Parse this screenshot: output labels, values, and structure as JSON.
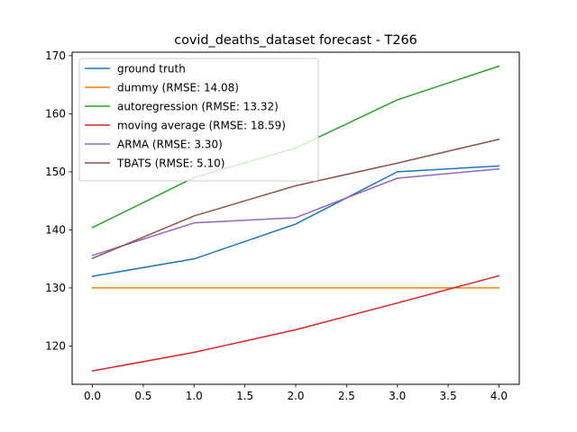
{
  "chart_data": {
    "type": "line",
    "title": "covid_deaths_dataset forecast - T266",
    "xlabel": "",
    "ylabel": "",
    "xlim": [
      -0.2,
      4.2
    ],
    "ylim": [
      113.4,
      170.6
    ],
    "xticks": [
      0.0,
      0.5,
      1.0,
      1.5,
      2.0,
      2.5,
      3.0,
      3.5,
      4.0
    ],
    "xtick_labels": [
      "0.0",
      "0.5",
      "1.0",
      "1.5",
      "2.0",
      "2.5",
      "3.0",
      "3.5",
      "4.0"
    ],
    "yticks": [
      120,
      130,
      140,
      150,
      160,
      170
    ],
    "ytick_labels": [
      "120",
      "130",
      "140",
      "150",
      "160",
      "170"
    ],
    "grid": false,
    "legend_position": "top-left",
    "x": [
      0,
      1,
      2,
      3,
      4
    ],
    "series": [
      {
        "name": "ground truth",
        "color": "#1f77b4",
        "values": [
          132.0,
          135.0,
          141.0,
          150.0,
          151.0
        ]
      },
      {
        "name": "dummy (RMSE: 14.08)",
        "color": "#ff7f0e",
        "values": [
          130.0,
          130.0,
          130.0,
          130.0,
          130.0
        ]
      },
      {
        "name": "autoregression (RMSE: 13.32)",
        "color": "#2ca02c",
        "values": [
          140.4,
          149.0,
          154.1,
          162.4,
          168.2
        ]
      },
      {
        "name": "moving average (RMSE: 18.59)",
        "color": "#d62728",
        "values": [
          115.7,
          118.9,
          122.8,
          127.4,
          132.1
        ]
      },
      {
        "name": "ARMA (RMSE: 3.30)",
        "color": "#9467bd",
        "values": [
          135.6,
          141.2,
          142.1,
          148.9,
          150.5
        ]
      },
      {
        "name": "TBATS (RMSE: 5.10)",
        "color": "#8c564b",
        "values": [
          135.1,
          142.4,
          147.6,
          151.5,
          155.6
        ]
      }
    ]
  }
}
